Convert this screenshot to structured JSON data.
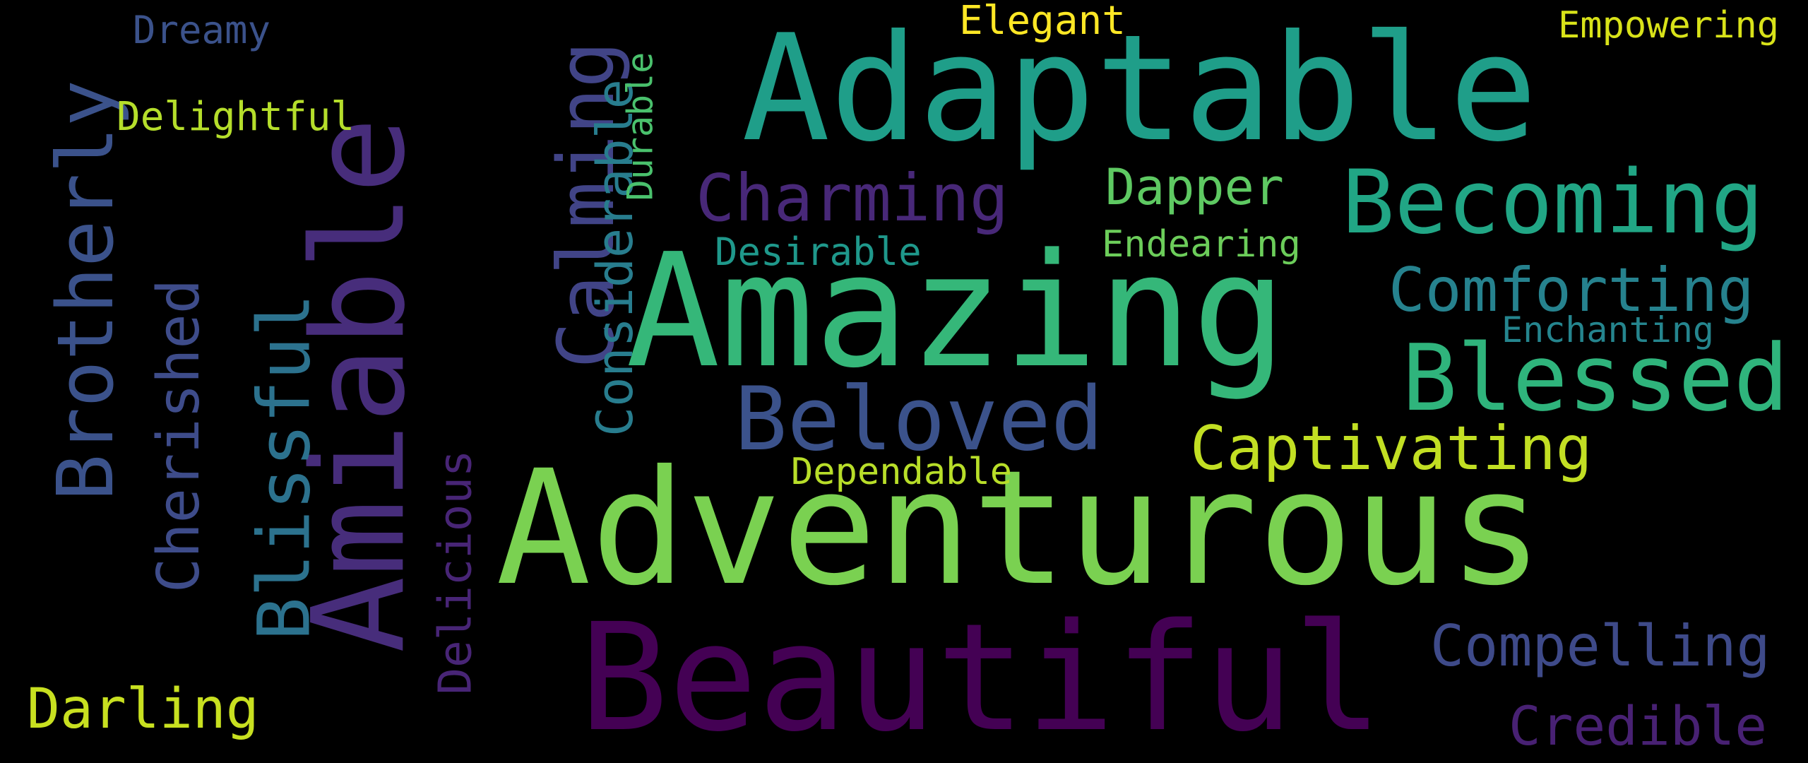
{
  "background_color": "#000000",
  "words": {
    "adaptable": {
      "text": "Adaptable",
      "color": "#1f9e89"
    },
    "amazing": {
      "text": "Amazing",
      "color": "#35b779"
    },
    "adventurous": {
      "text": "Adventurous",
      "color": "#7ad151"
    },
    "beautiful": {
      "text": "Beautiful",
      "color": "#440154"
    },
    "amiable": {
      "text": "Amiable",
      "color": "#472d7b"
    },
    "becoming": {
      "text": "Becoming",
      "color": "#21a685"
    },
    "blessed": {
      "text": "Blessed",
      "color": "#2fb47c"
    },
    "beloved": {
      "text": "Beloved",
      "color": "#3b528b"
    },
    "calming": {
      "text": "Calming",
      "color": "#414487"
    },
    "brotherly": {
      "text": "Brotherly",
      "color": "#3b528b"
    },
    "blissful": {
      "text": "Blissful",
      "color": "#2c728e"
    },
    "charming": {
      "text": "Charming",
      "color": "#482878"
    },
    "comforting": {
      "text": "Comforting",
      "color": "#26828e"
    },
    "captivating": {
      "text": "Captivating",
      "color": "#c2df23"
    },
    "compelling": {
      "text": "Compelling",
      "color": "#3e4a89"
    },
    "credible": {
      "text": "Credible",
      "color": "#482173"
    },
    "considerable": {
      "text": "Considerable",
      "color": "#287d8e"
    },
    "cherished": {
      "text": "Cherished",
      "color": "#3e4c8a"
    },
    "darling": {
      "text": "Darling",
      "color": "#c8e020"
    },
    "dapper": {
      "text": "Dapper",
      "color": "#5ec962"
    },
    "delicious": {
      "text": "Delicious",
      "color": "#482576"
    },
    "dreamy": {
      "text": "Dreamy",
      "color": "#3b528b"
    },
    "delightful": {
      "text": "Delightful",
      "color": "#b5de2b"
    },
    "elegant": {
      "text": "Elegant",
      "color": "#fde725"
    },
    "empowering": {
      "text": "Empowering",
      "color": "#d8e219"
    },
    "durable": {
      "text": "Durable",
      "color": "#4ac16d"
    },
    "desirable": {
      "text": "Desirable",
      "color": "#1f988b"
    },
    "endearing": {
      "text": "Endearing",
      "color": "#6ccd5a"
    },
    "enchanting": {
      "text": "Enchanting",
      "color": "#25858e"
    },
    "dependable": {
      "text": "Dependable",
      "color": "#b8de29"
    }
  }
}
